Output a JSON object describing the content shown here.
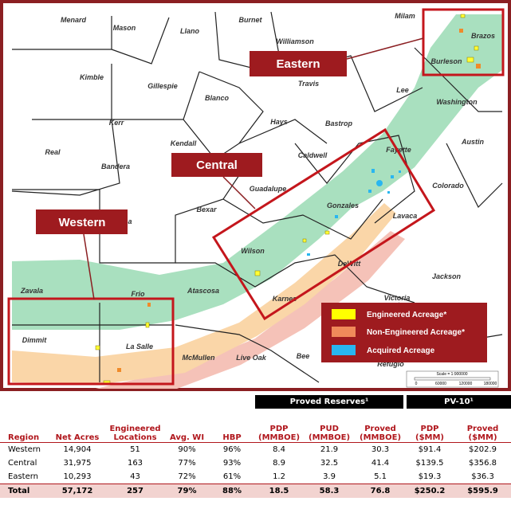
{
  "map": {
    "counties": [
      "Menard",
      "Mason",
      "Llano",
      "Burnet",
      "Milam",
      "Williamson",
      "Brazos",
      "Burleson",
      "Kimble",
      "Gillespie",
      "Travis",
      "Lee",
      "Washington",
      "Blanco",
      "Kerr",
      "Hays",
      "Bastrop",
      "Kendall",
      "Caldwell",
      "Fayette",
      "Austin",
      "Real",
      "Bandera",
      "Guadalupe",
      "Colorado",
      "Bexar",
      "Gonzales",
      "Lavaca",
      "Medina",
      "Wilson",
      "DeWitt",
      "Zavala",
      "Frio",
      "Atascosa",
      "Karnes",
      "Jackson",
      "Victoria",
      "Dimmit",
      "La Salle",
      "McMullen",
      "Live Oak",
      "Bee",
      "Refugio"
    ],
    "regions": [
      "Eastern",
      "Central",
      "Western"
    ],
    "legend": [
      "Engineered Acreage*",
      "Non-Engineered Acreage*",
      "Acquired Acreage"
    ],
    "scale": {
      "label": "Scale = 1:900000",
      "ticks": [
        "0",
        "60000",
        "120000",
        "180000"
      ]
    }
  },
  "table": {
    "group_headers": [
      "Proved Reserves¹",
      "PV-10¹"
    ],
    "headers": [
      "Region",
      "Net Acres",
      "Engineered Locations",
      "Avg. WI",
      "HBP",
      "PDP (MMBOE)",
      "PUD (MMBOE)",
      "Proved (MMBOE)",
      "PDP ($MM)",
      "Proved ($MM)"
    ],
    "rows": [
      [
        "Western",
        "14,904",
        "51",
        "90%",
        "96%",
        "8.4",
        "21.9",
        "30.3",
        "$91.4",
        "$202.9"
      ],
      [
        "Central",
        "31,975",
        "163",
        "77%",
        "93%",
        "8.9",
        "32.5",
        "41.4",
        "$139.5",
        "$356.8"
      ],
      [
        "Eastern",
        "10,293",
        "43",
        "72%",
        "61%",
        "1.2",
        "3.9",
        "5.1",
        "$19.3",
        "$36.3"
      ],
      [
        "Total",
        "57,172",
        "257",
        "79%",
        "88%",
        "18.5",
        "58.3",
        "76.8",
        "$250.2",
        "$595.9"
      ]
    ]
  }
}
